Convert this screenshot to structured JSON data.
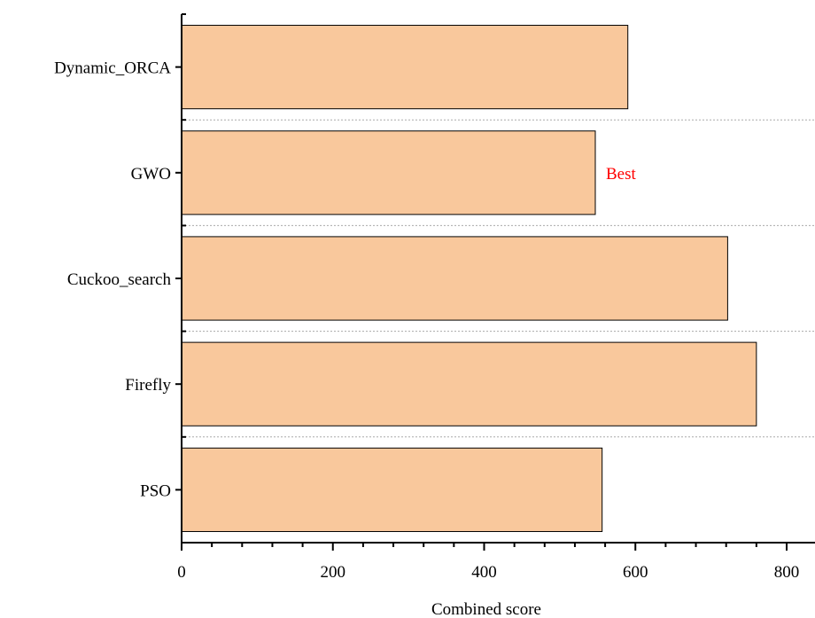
{
  "chart_data": {
    "type": "bar",
    "orientation": "horizontal",
    "categories": [
      "Dynamic_ORCA",
      "GWO",
      "Cuckoo_search",
      "Firefly",
      "PSO"
    ],
    "values": [
      590,
      547,
      722,
      760,
      556
    ],
    "xlabel": "Combined score",
    "ylabel": "",
    "xlim": [
      0,
      840
    ],
    "xticks": [
      0,
      200,
      400,
      600,
      800
    ],
    "bar_color": "#f9c89c",
    "bar_edge_color": "#000000",
    "grid": "horizontal dotted separators between categories",
    "annotations": [
      {
        "text": "Best",
        "category": "GWO",
        "color": "#ff0000"
      }
    ]
  }
}
